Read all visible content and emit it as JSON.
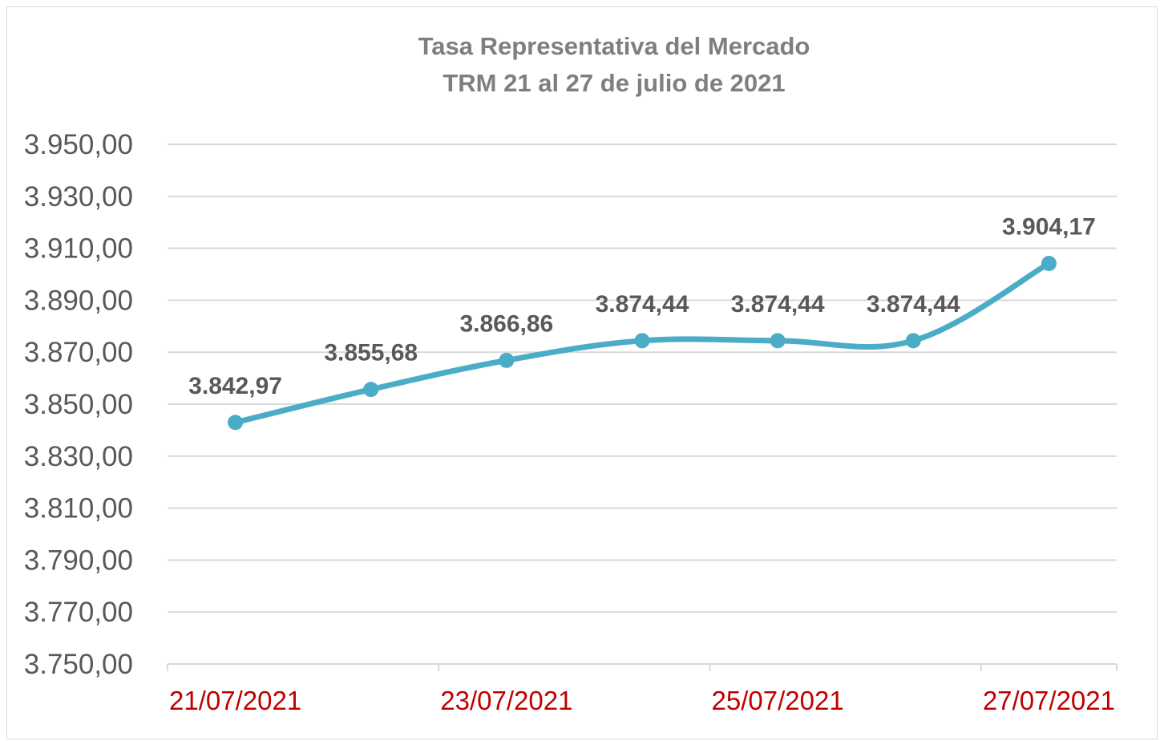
{
  "colors": {
    "series": "#4bacc6",
    "grid": "#d9d9d9",
    "title": "#7f7f7f",
    "ytick": "#595959",
    "xtick": "#c00000",
    "data_label": "#595959"
  },
  "chart_data": {
    "type": "line",
    "title": "Tasa Representativa del Mercado",
    "subtitle": "TRM 21 al 27 de julio de 2021",
    "xlabel": "",
    "ylabel": "",
    "x": [
      "21/07/2021",
      "22/07/2021",
      "23/07/2021",
      "24/07/2021",
      "25/07/2021",
      "26/07/2021",
      "27/07/2021"
    ],
    "x_tick_labels": [
      "21/07/2021",
      "23/07/2021",
      "25/07/2021",
      "27/07/2021"
    ],
    "series": [
      {
        "values": [
          3842.97,
          3855.68,
          3866.86,
          3874.44,
          3874.44,
          3874.44,
          3904.17
        ],
        "data_labels": [
          "3.842,97",
          "3.855,68",
          "3.866,86",
          "3.874,44",
          "3.874,44",
          "3.874,44",
          "3.904,17"
        ]
      }
    ],
    "ylim": [
      3750,
      3950
    ],
    "y_tick_values": [
      3750,
      3770,
      3790,
      3810,
      3830,
      3850,
      3870,
      3890,
      3910,
      3930,
      3950
    ],
    "y_tick_labels": [
      "3.750,00",
      "3.770,00",
      "3.790,00",
      "3.810,00",
      "3.830,00",
      "3.850,00",
      "3.870,00",
      "3.890,00",
      "3.910,00",
      "3.930,00",
      "3.950,00"
    ],
    "smooth": true,
    "markers": true,
    "grid": true,
    "legend": "none"
  }
}
